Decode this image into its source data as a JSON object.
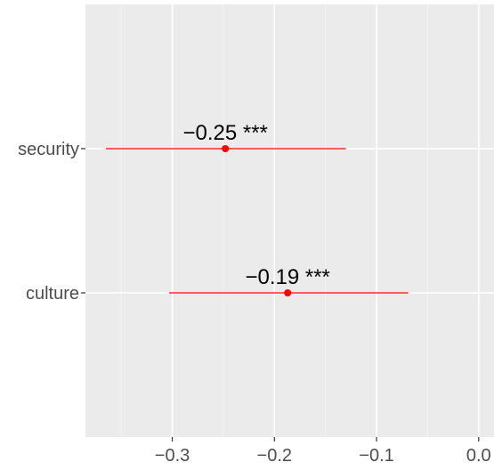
{
  "chart_data": {
    "type": "forest",
    "title": "",
    "xlabel": "",
    "ylabel": "",
    "xlim": [
      -0.385,
      0.015
    ],
    "x_ticks": [
      -0.3,
      -0.2,
      -0.1,
      0.0
    ],
    "x_tick_labels": [
      "−0.3",
      "−0.2",
      "−0.1",
      "0.0"
    ],
    "categories": [
      "security",
      "culture"
    ],
    "points": [
      {
        "category": "security",
        "estimate": -0.248,
        "ci_low": -0.365,
        "ci_high": -0.13,
        "label": "−0.25 ***"
      },
      {
        "category": "culture",
        "estimate": -0.187,
        "ci_low": -0.303,
        "ci_high": -0.069,
        "label": "−0.19 ***"
      }
    ],
    "grid": true,
    "colors": {
      "panel_background": "#ebebeb",
      "grid_major": "#ffffff",
      "grid_minor": "#f5f5f5",
      "point": "#ff0000",
      "interval": "#ff0000",
      "tick": "#333333",
      "tick_label": "#4d4d4d",
      "data_label": "#000000"
    }
  }
}
